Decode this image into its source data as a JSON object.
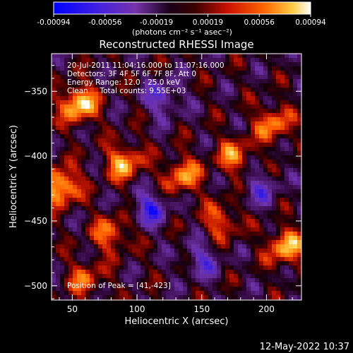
{
  "chart_data": {
    "type": "heatmap",
    "title": "Reconstructed RHESSI Image",
    "xlabel": "Heliocentric X (arcsec)",
    "ylabel": "Heliocentric Y (arcsec)",
    "xlim": [
      34,
      227
    ],
    "ylim": [
      -511,
      -321
    ],
    "x_ticks": [
      50,
      100,
      150,
      200
    ],
    "y_ticks": [
      -350,
      -400,
      -450,
      -500
    ],
    "colorbar": {
      "min": -0.00094,
      "max": 0.00094,
      "tick_labels": [
        "-0.00094",
        "-0.00056",
        "-0.00019",
        "0.00019",
        "0.00056",
        "0.00094"
      ],
      "units_label": "(photons cm⁻² s⁻¹ asec⁻²)",
      "colormap": [
        "#0000ff",
        "#6633cc",
        "#1a001a",
        "#550000",
        "#cc1100",
        "#ff6600",
        "#ffbb33",
        "#ffffff"
      ]
    },
    "annotations": [
      "20-Jul-2011 11:04:16.000 to 11:07:16.000",
      "Detectors: 3F 4F 5F 6F 7F 8F, Att 0",
      "Energy Range: 12.0 - 25.0 keV",
      "Clean     Total counts: 9.55E+03"
    ],
    "peak_label": "Position of Peak = [41,-423]",
    "bright_regions": [
      {
        "x": 55,
        "y": -360,
        "value": 0.00094
      },
      {
        "x": 41,
        "y": -423,
        "value": 0.00094
      },
      {
        "x": 90,
        "y": -405,
        "value": 0.00075
      },
      {
        "x": 135,
        "y": -415,
        "value": 0.0007
      },
      {
        "x": 175,
        "y": -400,
        "value": 0.0006
      },
      {
        "x": 205,
        "y": -375,
        "value": 0.00065
      },
      {
        "x": 215,
        "y": -470,
        "value": 0.0008
      },
      {
        "x": 80,
        "y": -460,
        "value": 0.0006
      },
      {
        "x": 165,
        "y": -450,
        "value": 0.00055
      },
      {
        "x": 60,
        "y": -495,
        "value": 0.0005
      }
    ],
    "dim_regions": [
      {
        "x": 120,
        "y": -355,
        "value": -0.0005
      },
      {
        "x": 110,
        "y": -440,
        "value": -0.0006
      },
      {
        "x": 150,
        "y": -480,
        "value": -0.00045
      },
      {
        "x": 195,
        "y": -425,
        "value": -0.0004
      }
    ]
  },
  "timestamp": "12-May-2022 10:37"
}
